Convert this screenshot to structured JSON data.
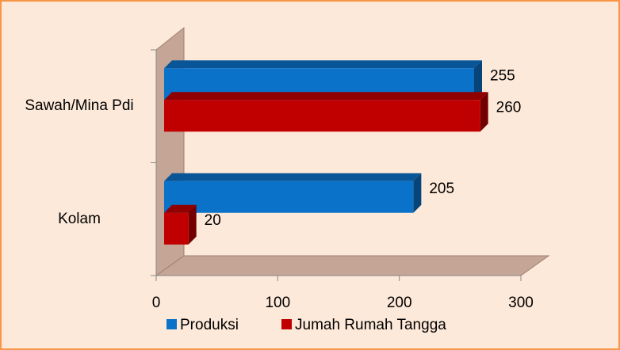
{
  "chart_data": {
    "type": "bar3d_horizontal",
    "categories": [
      "Kolam",
      "Sawah/Mina Pdi"
    ],
    "series": [
      {
        "name": "Produksi",
        "color": "#0a72c9",
        "values": [
          205,
          255
        ]
      },
      {
        "name": "Jumah Rumah Tangga",
        "color": "#c00000",
        "values": [
          20,
          260
        ]
      }
    ],
    "xlim": [
      0,
      300
    ],
    "xticks": [
      0,
      100,
      200,
      300
    ],
    "legend": "bottom"
  }
}
